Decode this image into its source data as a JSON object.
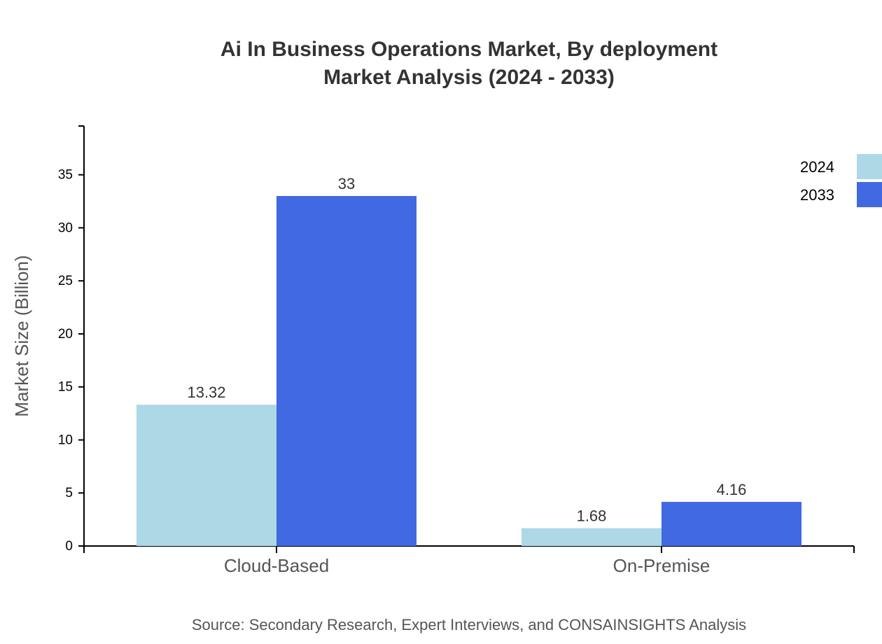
{
  "chart_data": {
    "type": "bar",
    "title_lines": [
      "Ai In Business Operations Market, By deployment",
      "Market Analysis (2024 - 2033)"
    ],
    "xlabel": "",
    "ylabel": "Market Size (Billion)",
    "categories": [
      "Cloud-Based",
      "On-Premise"
    ],
    "series": [
      {
        "name": "2024",
        "values": [
          13.32,
          1.68
        ],
        "labels": [
          "13.32",
          "1.68"
        ],
        "color": "#ADD8E6"
      },
      {
        "name": "2033",
        "values": [
          33,
          4.16
        ],
        "labels": [
          "33",
          "4.16"
        ],
        "color": "#4169E1"
      }
    ],
    "ylim": [
      0,
      39.6
    ],
    "yticks": [
      0,
      5,
      10,
      15,
      20,
      25,
      30,
      35
    ],
    "grid": false,
    "legend_position": "top-right",
    "source": "Source: Secondary Research, Expert Interviews, and CONSAINSIGHTS Analysis"
  }
}
